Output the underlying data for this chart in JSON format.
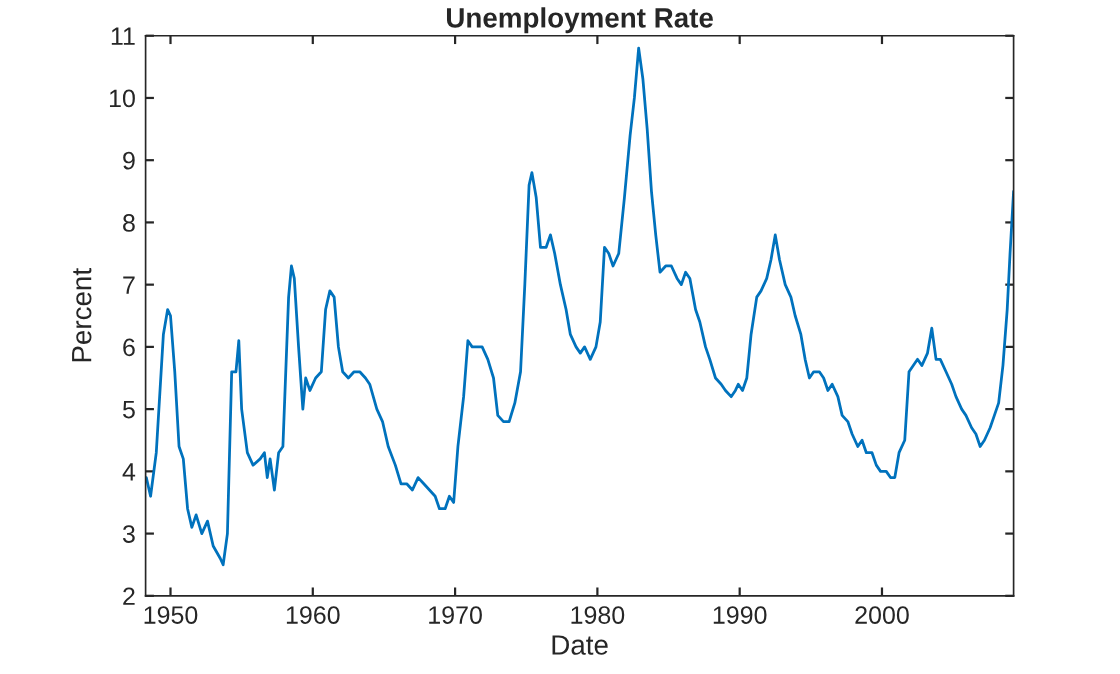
{
  "chart_data": {
    "type": "line",
    "title": "Unemployment Rate",
    "xlabel": "Date",
    "ylabel": "Percent",
    "xlim": [
      1948.25,
      2009.25
    ],
    "xticks": [
      1950,
      1960,
      1970,
      1980,
      1990,
      2000
    ],
    "ylim": [
      2,
      11
    ],
    "yticks": [
      2,
      3,
      4,
      5,
      6,
      7,
      8,
      9,
      10,
      11
    ],
    "grid": false,
    "legend": false,
    "marker": "none",
    "line_style": "solid",
    "series": [
      {
        "color": "#0072bd",
        "x": [
          1948.3,
          1948.6,
          1949.0,
          1949.5,
          1949.8,
          1950.0,
          1950.3,
          1950.6,
          1950.9,
          1951.2,
          1951.5,
          1951.8,
          1952.2,
          1952.6,
          1953.0,
          1953.5,
          1953.7,
          1954.0,
          1954.3,
          1954.6,
          1954.8,
          1955.0,
          1955.4,
          1955.8,
          1956.3,
          1956.6,
          1956.8,
          1957.0,
          1957.3,
          1957.6,
          1957.9,
          1958.3,
          1958.5,
          1958.7,
          1959.0,
          1959.3,
          1959.5,
          1959.8,
          1960.2,
          1960.6,
          1960.9,
          1961.2,
          1961.5,
          1961.8,
          1962.1,
          1962.5,
          1962.9,
          1963.3,
          1963.7,
          1964.0,
          1964.5,
          1964.9,
          1965.3,
          1965.8,
          1966.2,
          1966.6,
          1967.0,
          1967.4,
          1967.8,
          1968.2,
          1968.6,
          1968.9,
          1969.3,
          1969.6,
          1969.9,
          1970.2,
          1970.6,
          1970.9,
          1971.2,
          1971.6,
          1971.9,
          1972.3,
          1972.7,
          1973.0,
          1973.4,
          1973.8,
          1974.2,
          1974.6,
          1974.9,
          1975.2,
          1975.4,
          1975.7,
          1976.0,
          1976.4,
          1976.7,
          1977.0,
          1977.4,
          1977.8,
          1978.1,
          1978.5,
          1978.8,
          1979.1,
          1979.5,
          1979.9,
          1980.2,
          1980.5,
          1980.8,
          1981.1,
          1981.5,
          1981.9,
          1982.3,
          1982.6,
          1982.9,
          1983.2,
          1983.5,
          1983.8,
          1984.1,
          1984.4,
          1984.8,
          1985.2,
          1985.6,
          1985.9,
          1986.2,
          1986.5,
          1986.9,
          1987.2,
          1987.6,
          1987.9,
          1988.3,
          1988.7,
          1989.0,
          1989.4,
          1989.7,
          1989.9,
          1990.2,
          1990.5,
          1990.8,
          1991.2,
          1991.5,
          1991.9,
          1992.2,
          1992.5,
          1992.8,
          1993.2,
          1993.6,
          1993.9,
          1994.3,
          1994.6,
          1994.9,
          1995.2,
          1995.6,
          1995.9,
          1996.2,
          1996.5,
          1996.9,
          1997.2,
          1997.6,
          1997.9,
          1998.3,
          1998.6,
          1998.9,
          1999.3,
          1999.6,
          1999.9,
          2000.3,
          2000.6,
          2000.9,
          2001.2,
          2001.6,
          2001.9,
          2002.2,
          2002.5,
          2002.8,
          2003.2,
          2003.5,
          2003.8,
          2004.1,
          2004.5,
          2004.9,
          2005.2,
          2005.6,
          2005.9,
          2006.3,
          2006.6,
          2006.9,
          2007.2,
          2007.6,
          2007.9,
          2008.2,
          2008.5,
          2008.8,
          2009.0,
          2009.25
        ],
        "values": [
          3.9,
          3.6,
          4.3,
          6.2,
          6.6,
          6.5,
          5.6,
          4.4,
          4.2,
          3.4,
          3.1,
          3.3,
          3.0,
          3.2,
          2.8,
          2.6,
          2.5,
          3.0,
          5.6,
          5.6,
          6.1,
          5.0,
          4.3,
          4.1,
          4.2,
          4.3,
          3.9,
          4.2,
          3.7,
          4.3,
          4.4,
          6.8,
          7.3,
          7.1,
          6.0,
          5.0,
          5.5,
          5.3,
          5.5,
          5.6,
          6.6,
          6.9,
          6.8,
          6.0,
          5.6,
          5.5,
          5.6,
          5.6,
          5.5,
          5.4,
          5.0,
          4.8,
          4.4,
          4.1,
          3.8,
          3.8,
          3.7,
          3.9,
          3.8,
          3.7,
          3.6,
          3.4,
          3.4,
          3.6,
          3.5,
          4.4,
          5.2,
          6.1,
          6.0,
          6.0,
          6.0,
          5.8,
          5.5,
          4.9,
          4.8,
          4.8,
          5.1,
          5.6,
          7.0,
          8.6,
          8.8,
          8.4,
          7.6,
          7.6,
          7.8,
          7.5,
          7.0,
          6.6,
          6.2,
          6.0,
          5.9,
          6.0,
          5.8,
          6.0,
          6.4,
          7.6,
          7.5,
          7.3,
          7.5,
          8.4,
          9.4,
          10.0,
          10.8,
          10.3,
          9.5,
          8.5,
          7.8,
          7.2,
          7.3,
          7.3,
          7.1,
          7.0,
          7.2,
          7.1,
          6.6,
          6.4,
          6.0,
          5.8,
          5.5,
          5.4,
          5.3,
          5.2,
          5.3,
          5.4,
          5.3,
          5.5,
          6.2,
          6.8,
          6.9,
          7.1,
          7.4,
          7.8,
          7.4,
          7.0,
          6.8,
          6.5,
          6.2,
          5.8,
          5.5,
          5.6,
          5.6,
          5.5,
          5.3,
          5.4,
          5.2,
          4.9,
          4.8,
          4.6,
          4.4,
          4.5,
          4.3,
          4.3,
          4.1,
          4.0,
          4.0,
          3.9,
          3.9,
          4.3,
          4.5,
          5.6,
          5.7,
          5.8,
          5.7,
          5.9,
          6.3,
          5.8,
          5.8,
          5.6,
          5.4,
          5.2,
          5.0,
          4.9,
          4.7,
          4.6,
          4.4,
          4.5,
          4.7,
          4.9,
          5.1,
          5.7,
          6.6,
          7.5,
          8.5
        ]
      }
    ]
  }
}
